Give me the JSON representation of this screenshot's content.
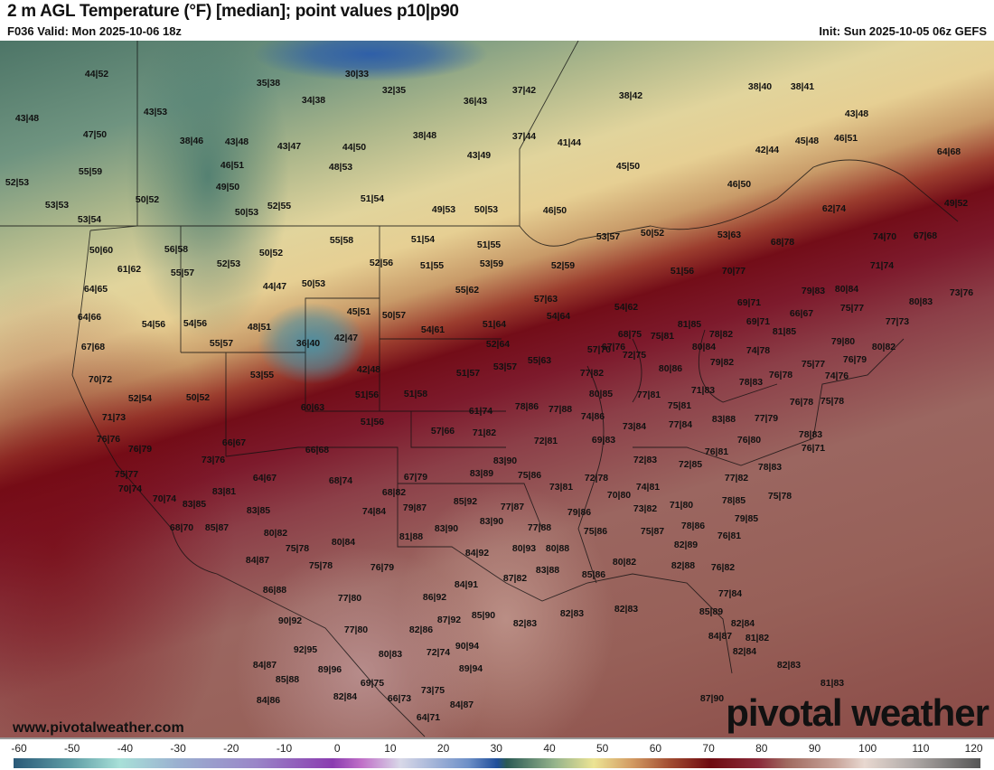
{
  "header": {
    "title": "2 m AGL Temperature (°F) [median]; point values p10|p90",
    "valid": "F036 Valid: Mon 2025-10-06 18z",
    "init": "Init: Sun 2025-10-05 06z GEFS"
  },
  "footer": {
    "website": "www.pivotalweather.com",
    "logo": "pivotal weather"
  },
  "colorbar": {
    "unit": "°F",
    "ticks": [
      "-60",
      "-50",
      "-40",
      "-30",
      "-20",
      "-10",
      "0",
      "10",
      "20",
      "30",
      "40",
      "50",
      "60",
      "70",
      "80",
      "90",
      "100",
      "110",
      "120"
    ]
  },
  "points": [
    "44|52",
    "35|38",
    "30|33",
    "37|42",
    "38|42",
    "38|40",
    "38|41",
    "43|48",
    "43|53",
    "34|38",
    "32|35",
    "36|43",
    "43|48",
    "47|50",
    "38|46",
    "43|48",
    "43|47",
    "44|50",
    "38|48",
    "37|44",
    "41|44",
    "45|48",
    "46|51",
    "42|44",
    "64|68",
    "55|59",
    "46|51",
    "48|53",
    "43|49",
    "45|50",
    "52|53",
    "49|50",
    "46|50",
    "50|52",
    "51|54",
    "53|53",
    "50|53",
    "52|55",
    "49|53",
    "50|53",
    "46|50",
    "62|74",
    "49|52",
    "53|54",
    "50|60",
    "56|58",
    "55|58",
    "51|54",
    "51|55",
    "53|57",
    "50|52",
    "53|63",
    "68|78",
    "74|70",
    "67|68",
    "50|52",
    "61|62",
    "52|53",
    "52|56",
    "51|55",
    "53|59",
    "52|59",
    "51|56",
    "70|77",
    "71|74",
    "55|57",
    "44|47",
    "50|53",
    "64|65",
    "55|62",
    "57|63",
    "79|83",
    "80|84",
    "73|76",
    "80|83",
    "54|62",
    "69|71",
    "45|51",
    "50|57",
    "54|64",
    "66|67",
    "75|77",
    "64|66",
    "54|56",
    "54|56",
    "48|51",
    "51|64",
    "81|85",
    "69|71",
    "77|73",
    "54|61",
    "68|75",
    "75|81",
    "78|82",
    "81|85",
    "36|40",
    "42|47",
    "55|57",
    "52|64",
    "79|80",
    "67|68",
    "57|70",
    "67|76",
    "72|75",
    "80|84",
    "74|78",
    "80|82",
    "55|63",
    "79|82",
    "75|77",
    "76|79",
    "53|57",
    "42|48",
    "80|86",
    "51|57",
    "53|55",
    "77|82",
    "78|83",
    "76|78",
    "74|76",
    "70|72",
    "71|83",
    "80|85",
    "77|81",
    "75|78",
    "52|54",
    "50|52",
    "51|56",
    "51|58",
    "76|78",
    "60|63",
    "61|74",
    "78|86",
    "77|88",
    "74|86",
    "75|81",
    "71|73",
    "51|56",
    "73|84",
    "77|84",
    "83|88",
    "77|79",
    "78|83",
    "57|66",
    "71|82",
    "76|80",
    "76|76",
    "72|81",
    "69|83",
    "76|71",
    "66|67",
    "66|68",
    "76|79",
    "76|81",
    "72|83",
    "72|85",
    "73|76",
    "83|90",
    "78|83",
    "67|79",
    "83|89",
    "75|86",
    "72|78",
    "77|82",
    "64|67",
    "68|74",
    "75|77",
    "73|81",
    "74|81",
    "70|74",
    "83|81",
    "68|82",
    "70|80",
    "71|80",
    "78|85",
    "75|78",
    "70|74",
    "85|92",
    "77|87",
    "83|85",
    "83|85",
    "74|84",
    "79|87",
    "73|82",
    "79|86",
    "79|85",
    "83|90",
    "68|70",
    "85|87",
    "77|88",
    "83|90",
    "78|86",
    "75|86",
    "75|87",
    "76|81",
    "80|82",
    "81|88",
    "80|84",
    "80|93",
    "80|88",
    "82|89",
    "75|78",
    "84|92",
    "84|87",
    "75|78",
    "76|79",
    "82|88",
    "76|82",
    "80|82",
    "83|88",
    "85|86",
    "87|82",
    "84|91",
    "86|88",
    "77|80",
    "86|92",
    "77|84",
    "82|83",
    "82|83",
    "82|83",
    "85|89",
    "85|90",
    "87|92",
    "90|92",
    "77|80",
    "82|86",
    "82|84",
    "84|87",
    "81|82",
    "90|94",
    "92|95",
    "72|74",
    "80|83",
    "82|84",
    "84|87",
    "89|96",
    "89|94",
    "82|83",
    "85|88",
    "69|75",
    "81|83",
    "73|75",
    "84|86",
    "82|84",
    "66|73",
    "84|87",
    "87|90",
    "64|71"
  ]
}
